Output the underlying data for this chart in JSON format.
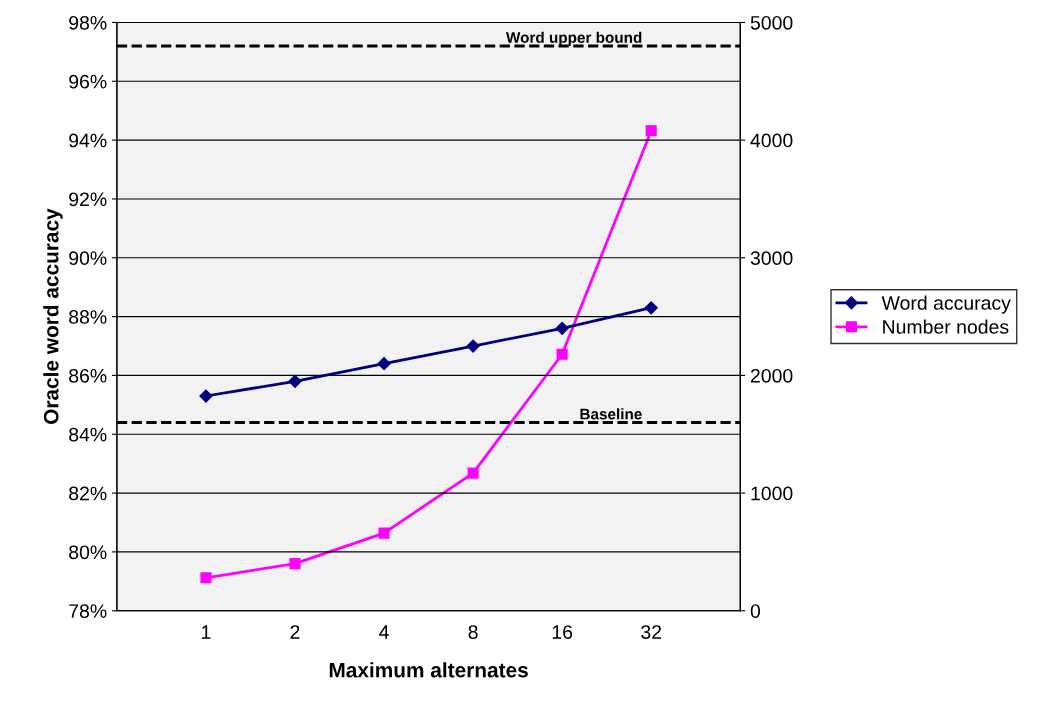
{
  "chart_data": {
    "type": "line",
    "xlabel": "Maximum alternates",
    "ylabel": "Oracle word accuracy",
    "categories": [
      "1",
      "2",
      "4",
      "8",
      "16",
      "32"
    ],
    "series": [
      {
        "name": "Word accuracy",
        "color": "#000080",
        "marker": "diamond",
        "values": [
          85.3,
          85.8,
          86.4,
          87.0,
          87.6,
          88.3
        ]
      },
      {
        "name": "Number nodes",
        "color": "#ff00ff",
        "marker": "square",
        "axis": "y2",
        "values": [
          280,
          400,
          660,
          1170,
          2180,
          4080
        ]
      }
    ],
    "ylim": [
      78,
      98
    ],
    "yticks": [
      {
        "value": 78,
        "label": "78%"
      },
      {
        "value": 80,
        "label": "80%"
      },
      {
        "value": 82,
        "label": "82%"
      },
      {
        "value": 84,
        "label": "84%"
      },
      {
        "value": 86,
        "label": "86%"
      },
      {
        "value": 88,
        "label": "88%"
      },
      {
        "value": 90,
        "label": "90%"
      },
      {
        "value": 92,
        "label": "92%"
      },
      {
        "value": 94,
        "label": "94%"
      },
      {
        "value": 96,
        "label": "96%"
      },
      {
        "value": 98,
        "label": "98%"
      }
    ],
    "y2lim": [
      0,
      5000
    ],
    "y2ticks": [
      0,
      1000,
      2000,
      3000,
      4000,
      5000
    ],
    "ref_lines": [
      {
        "axis": "y",
        "value": 97.2,
        "label": "Word upper bound",
        "color": "#000000",
        "line_style": "dashed"
      },
      {
        "axis": "y",
        "value": 84.4,
        "label": "Baseline",
        "color": "#000000",
        "line_style": "dashed"
      }
    ],
    "grid": "y",
    "legend": "right",
    "line_style": "solid"
  }
}
